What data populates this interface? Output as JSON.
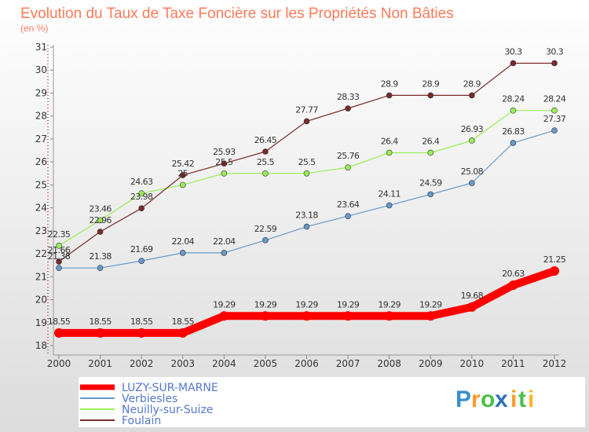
{
  "chart_data": {
    "type": "line",
    "title": "Evolution du Taux de Taxe Foncière sur les Propriétés Non Bâties",
    "subtitle": "(en %)",
    "x": [
      "2000",
      "2001",
      "2002",
      "2003",
      "2004",
      "2005",
      "2006",
      "2007",
      "2008",
      "2009",
      "2010",
      "2011",
      "2012"
    ],
    "yticks": [
      18,
      19,
      20,
      21,
      22,
      23,
      24,
      25,
      26,
      27,
      28,
      29,
      30,
      31
    ],
    "ylim": [
      18,
      31
    ],
    "grid": false,
    "legend_position": "bottom-left",
    "series": [
      {
        "name": "LUZY-SUR-MARNE",
        "color": "#ff0000",
        "values": [
          18.55,
          18.55,
          18.55,
          18.55,
          19.29,
          19.29,
          19.29,
          19.29,
          19.29,
          19.29,
          19.68,
          20.63,
          21.25
        ],
        "labels": [
          "18.55",
          "18.55",
          "18.55",
          "18.55",
          "19.29",
          "19.29",
          "19.29",
          "19.29",
          "19.29",
          "19.29",
          "19.68",
          "20.63",
          "21.25"
        ]
      },
      {
        "name": "Verbiesles",
        "color": "#6699cc",
        "values": [
          21.38,
          21.38,
          21.69,
          22.04,
          22.04,
          22.59,
          23.18,
          23.64,
          24.11,
          24.59,
          25.08,
          26.83,
          27.37
        ],
        "labels": [
          "21.38",
          "21.38",
          "21.69",
          "22.04",
          "22.04",
          "22.59",
          "23.18",
          "23.64",
          "24.11",
          "24.59",
          "25.08",
          "26.83",
          "27.37"
        ]
      },
      {
        "name": "Neuilly-sur-Suize",
        "color": "#99ee55",
        "values": [
          22.35,
          23.46,
          24.63,
          25.0,
          25.5,
          25.5,
          25.5,
          25.76,
          26.4,
          26.4,
          26.93,
          28.24,
          28.24
        ],
        "labels": [
          "22.35",
          "23.46",
          "24.63",
          "25",
          "25.5",
          "25.5",
          "25.5",
          "25.76",
          "26.4",
          "26.4",
          "26.93",
          "28.24",
          "28.24"
        ]
      },
      {
        "name": "Foulain",
        "color": "#7a2a2a",
        "values": [
          21.66,
          22.96,
          23.98,
          25.42,
          25.93,
          26.45,
          27.77,
          28.33,
          28.9,
          28.9,
          28.9,
          30.3,
          30.3
        ],
        "labels": [
          "21.66",
          "22.96",
          "23.98",
          "25.42",
          "25.93",
          "26.45",
          "27.77",
          "28.33",
          "28.9",
          "28.9",
          "28.9",
          "30.3",
          "30.3"
        ]
      }
    ]
  },
  "logo": {
    "text": "Proxiti"
  }
}
